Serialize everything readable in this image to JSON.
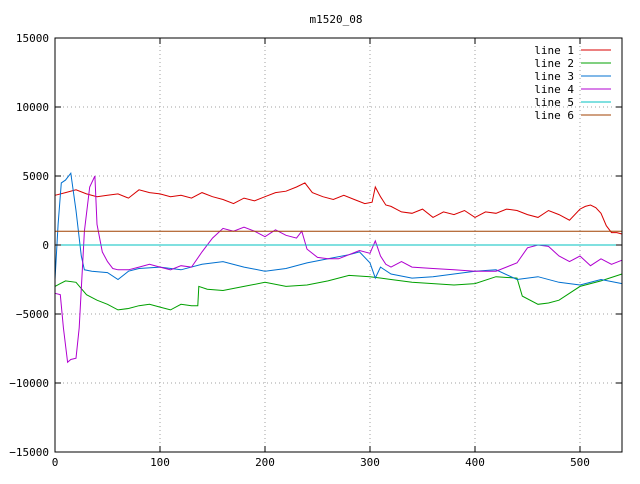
{
  "chart_data": {
    "type": "line",
    "title": "m1520_08",
    "xlabel": "",
    "ylabel": "",
    "xlim": [
      0,
      540
    ],
    "ylim": [
      -15000,
      15000
    ],
    "xticks": [
      0,
      100,
      200,
      300,
      400,
      500
    ],
    "yticks": [
      -15000,
      -10000,
      -5000,
      0,
      5000,
      10000,
      15000
    ],
    "xtick_labels": [
      "0",
      "100",
      "200",
      "300",
      "400",
      "500"
    ],
    "ytick_labels": [
      "−15000",
      "−10000",
      "−5000",
      "0",
      "5000",
      "10000",
      "15000"
    ],
    "grid": true,
    "legend_position": "top-right",
    "series": [
      {
        "name": "line 1",
        "color": "#d80000",
        "x": [
          0,
          10,
          20,
          30,
          40,
          50,
          60,
          70,
          80,
          90,
          100,
          110,
          120,
          130,
          140,
          150,
          160,
          170,
          180,
          190,
          200,
          210,
          220,
          230,
          238,
          245,
          255,
          265,
          275,
          285,
          295,
          302,
          305,
          310,
          315,
          320,
          330,
          340,
          350,
          360,
          370,
          380,
          390,
          400,
          410,
          420,
          430,
          440,
          450,
          460,
          470,
          480,
          490,
          500,
          505,
          510,
          515,
          520,
          525,
          530,
          535,
          540
        ],
        "y": [
          3600,
          3800,
          4000,
          3700,
          3500,
          3600,
          3700,
          3400,
          4000,
          3800,
          3700,
          3500,
          3600,
          3400,
          3800,
          3500,
          3300,
          3000,
          3400,
          3200,
          3500,
          3800,
          3900,
          4200,
          4500,
          3800,
          3500,
          3300,
          3600,
          3300,
          3000,
          3100,
          4200,
          3500,
          2900,
          2800,
          2400,
          2300,
          2600,
          2000,
          2400,
          2200,
          2500,
          2000,
          2400,
          2300,
          2600,
          2500,
          2200,
          2000,
          2500,
          2200,
          1800,
          2600,
          2800,
          2900,
          2700,
          2300,
          1400,
          900,
          900,
          800
        ]
      },
      {
        "name": "line 2",
        "color": "#00a000",
        "x": [
          0,
          5,
          10,
          20,
          30,
          40,
          50,
          60,
          70,
          80,
          90,
          100,
          110,
          120,
          130,
          136,
          137,
          145,
          160,
          180,
          200,
          220,
          240,
          260,
          280,
          300,
          320,
          340,
          360,
          380,
          400,
          420,
          440,
          445,
          460,
          470,
          480,
          500,
          520,
          540
        ],
        "y": [
          -3000,
          -2800,
          -2600,
          -2700,
          -3600,
          -4000,
          -4300,
          -4700,
          -4600,
          -4400,
          -4300,
          -4500,
          -4700,
          -4300,
          -4400,
          -4400,
          -3000,
          -3200,
          -3300,
          -3000,
          -2700,
          -3000,
          -2900,
          -2600,
          -2200,
          -2300,
          -2500,
          -2700,
          -2800,
          -2900,
          -2800,
          -2300,
          -2400,
          -3700,
          -4300,
          -4200,
          -4000,
          -3000,
          -2600,
          -2100
        ]
      },
      {
        "name": "line 3",
        "color": "#0070d0",
        "x": [
          0,
          3,
          6,
          10,
          15,
          20,
          25,
          28,
          35,
          50,
          60,
          70,
          80,
          100,
          120,
          140,
          160,
          180,
          200,
          220,
          240,
          260,
          280,
          290,
          300,
          305,
          310,
          320,
          340,
          360,
          380,
          400,
          420,
          440,
          460,
          480,
          500,
          520,
          540
        ],
        "y": [
          -2500,
          1500,
          4500,
          4700,
          5200,
          2500,
          -800,
          -1800,
          -1900,
          -2000,
          -2500,
          -1900,
          -1700,
          -1600,
          -1800,
          -1400,
          -1200,
          -1600,
          -1900,
          -1700,
          -1300,
          -1000,
          -700,
          -500,
          -1300,
          -2400,
          -1600,
          -2100,
          -2400,
          -2300,
          -2100,
          -1900,
          -1800,
          -2500,
          -2300,
          -2700,
          -2900,
          -2500,
          -2800
        ]
      },
      {
        "name": "line 4",
        "color": "#b000d0",
        "x": [
          0,
          5,
          8,
          12,
          15,
          20,
          23,
          28,
          33,
          38,
          40,
          45,
          50,
          55,
          60,
          70,
          80,
          90,
          100,
          110,
          120,
          130,
          140,
          150,
          160,
          170,
          180,
          190,
          200,
          210,
          220,
          230,
          235,
          240,
          250,
          260,
          270,
          280,
          290,
          300,
          305,
          310,
          315,
          320,
          330,
          340,
          360,
          380,
          400,
          420,
          440,
          450,
          460,
          470,
          480,
          490,
          500,
          510,
          520,
          530,
          540
        ],
        "y": [
          -3500,
          -3600,
          -6000,
          -8500,
          -8300,
          -8200,
          -6000,
          1000,
          4200,
          5000,
          1500,
          -500,
          -1200,
          -1700,
          -1800,
          -1800,
          -1600,
          -1400,
          -1600,
          -1800,
          -1500,
          -1600,
          -500,
          500,
          1200,
          1000,
          1300,
          1000,
          600,
          1100,
          700,
          500,
          1000,
          -300,
          -900,
          -1000,
          -1000,
          -700,
          -400,
          -600,
          300,
          -800,
          -1400,
          -1600,
          -1200,
          -1600,
          -1700,
          -1800,
          -1900,
          -1900,
          -1300,
          -200,
          0,
          -100,
          -800,
          -1200,
          -800,
          -1500,
          -1000,
          -1400,
          -1100
        ]
      },
      {
        "name": "line 5",
        "color": "#00c0c0",
        "x": [
          0,
          20,
          40,
          60,
          80,
          100,
          120,
          140,
          160,
          180,
          200,
          220,
          240,
          260,
          280,
          300,
          320,
          340,
          360,
          380,
          400,
          420,
          440,
          460,
          480,
          500,
          520,
          540
        ],
        "y": [
          0,
          0,
          0,
          0,
          0,
          0,
          0,
          0,
          0,
          0,
          0,
          0,
          0,
          0,
          0,
          0,
          0,
          0,
          0,
          0,
          0,
          0,
          0,
          0,
          0,
          0,
          0,
          0
        ]
      },
      {
        "name": "line 6",
        "color": "#a04000",
        "x": [
          0,
          20,
          40,
          60,
          80,
          100,
          120,
          140,
          160,
          180,
          200,
          220,
          240,
          260,
          280,
          300,
          320,
          340,
          360,
          380,
          400,
          420,
          440,
          460,
          480,
          500,
          520,
          540
        ],
        "y": [
          1000,
          1000,
          1000,
          1000,
          1000,
          1000,
          1000,
          1000,
          1000,
          1000,
          1000,
          1000,
          1000,
          1000,
          1000,
          1000,
          1000,
          1000,
          1000,
          1000,
          1000,
          1000,
          1000,
          1000,
          1000,
          1000,
          1000,
          1000
        ]
      }
    ]
  }
}
